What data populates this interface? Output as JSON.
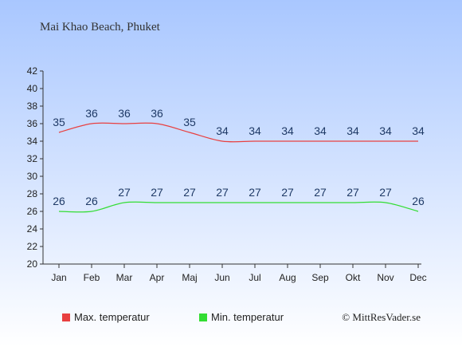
{
  "title": "Mai Khao Beach, Phuket",
  "legend": [
    {
      "label": "Max. temperatur",
      "color": "#e84040"
    },
    {
      "label": "Min. temperatur",
      "color": "#33dd33"
    }
  ],
  "copyright": "© MittResVader.se",
  "colors": {
    "bg_top": "#a9c7ff",
    "bg_bottom": "#ffffff",
    "max_line": "#e84040",
    "min_line": "#33dd33",
    "label_text": "#1f3a66",
    "axis": "#333333"
  },
  "chart_data": {
    "type": "line",
    "title": "Mai Khao Beach, Phuket",
    "categories": [
      "Jan",
      "Feb",
      "Mar",
      "Apr",
      "Maj",
      "Jun",
      "Jul",
      "Aug",
      "Sep",
      "Okt",
      "Nov",
      "Dec"
    ],
    "series": [
      {
        "name": "Max. temperatur",
        "values": [
          35,
          36,
          36,
          36,
          35,
          34,
          34,
          34,
          34,
          34,
          34,
          34
        ]
      },
      {
        "name": "Min. temperatur",
        "values": [
          26,
          26,
          27,
          27,
          27,
          27,
          27,
          27,
          27,
          27,
          27,
          26
        ]
      }
    ],
    "yticks": [
      20,
      22,
      24,
      26,
      28,
      30,
      32,
      34,
      36,
      38,
      40,
      42
    ],
    "ylim": [
      20,
      42
    ],
    "xlabel": "",
    "ylabel": "",
    "legend_position": "bottom-left",
    "grid": false
  }
}
